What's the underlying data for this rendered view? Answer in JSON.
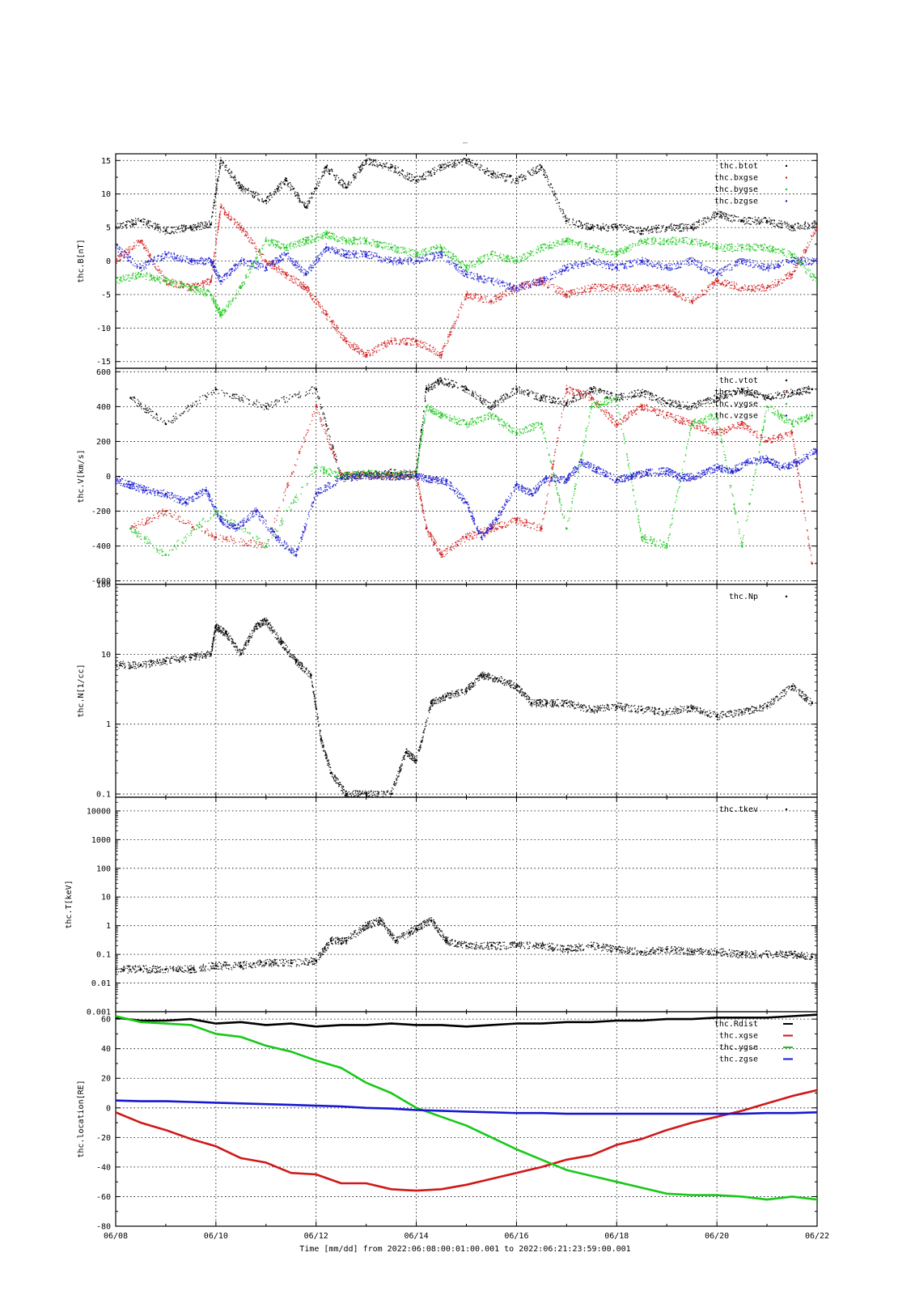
{
  "title": "_",
  "x_title": "Time [mm/dd]  from 2022:06:08:00:01:00.001  to  2022:06:21:23:59:00.001",
  "x_ticks": [
    "06/08",
    "06/10",
    "06/12",
    "06/14",
    "06/16",
    "06/18",
    "06/20",
    "06/22"
  ],
  "colors": {
    "black": "#000000",
    "red": "#d01818",
    "green": "#18c818",
    "blue": "#1818d0",
    "grid": "#000000"
  },
  "chart_data": [
    {
      "type": "scatter",
      "ylabel": "thc.B[nT]",
      "scale": "linear",
      "ylim": [
        -16,
        16
      ],
      "yticks": [
        -15,
        -10,
        -5,
        0,
        5,
        10,
        15
      ],
      "ytick_labels": [
        "-15",
        "-10",
        "-5",
        "0",
        "5",
        "10",
        "15"
      ],
      "series": [
        {
          "name": "thc.btot",
          "color": "black",
          "style": "points",
          "x": [
            0,
            0.5,
            1,
            1.5,
            1.9,
            2.1,
            2.5,
            3,
            3.4,
            3.8,
            4.2,
            4.6,
            5,
            5.5,
            6,
            6.5,
            7,
            7.5,
            8,
            8.5,
            9,
            9.5,
            10,
            10.5,
            11,
            11.5,
            12,
            12.5,
            13,
            13.5,
            14
          ],
          "y": [
            5,
            6,
            4.5,
            5,
            5.5,
            15,
            11,
            9,
            12,
            8,
            14,
            11,
            15,
            14,
            12,
            14,
            15,
            13,
            12,
            14,
            6,
            5,
            5,
            4.5,
            5,
            5,
            7,
            6,
            6,
            5,
            5.5
          ]
        },
        {
          "name": "thc.bxgse",
          "color": "red",
          "style": "points",
          "x": [
            0,
            0.5,
            1,
            1.5,
            1.9,
            2.1,
            2.5,
            3,
            3.4,
            3.8,
            4.2,
            4.6,
            5,
            5.5,
            6,
            6.5,
            7,
            7.5,
            8,
            8.5,
            9,
            9.5,
            10,
            10.5,
            11,
            11.5,
            12,
            12.5,
            13,
            13.5,
            14
          ],
          "y": [
            0,
            3,
            -3,
            -4,
            -3,
            8,
            5,
            0,
            -2,
            -4,
            -8,
            -12,
            -14,
            -12,
            -12,
            -14,
            -5,
            -6,
            -4,
            -3,
            -5,
            -4,
            -4,
            -4,
            -4,
            -6,
            -3,
            -4,
            -4,
            -2,
            5
          ]
        },
        {
          "name": "thc.bygse",
          "color": "green",
          "style": "points",
          "x": [
            0,
            0.5,
            1,
            1.5,
            1.9,
            2.1,
            2.5,
            3,
            3.4,
            3.8,
            4.2,
            4.6,
            5,
            5.5,
            6,
            6.5,
            7,
            7.5,
            8,
            8.5,
            9,
            9.5,
            10,
            10.5,
            11,
            11.5,
            12,
            12.5,
            13,
            13.5,
            14
          ],
          "y": [
            -3,
            -2,
            -3,
            -4,
            -5,
            -8,
            -4,
            3,
            2,
            3,
            4,
            3,
            3,
            2,
            1,
            2,
            -1,
            1,
            0,
            2,
            3,
            2,
            1,
            3,
            3,
            3,
            2,
            2,
            2,
            1,
            -3
          ]
        },
        {
          "name": "thc.bzgse",
          "color": "blue",
          "style": "points",
          "x": [
            0,
            0.5,
            1,
            1.5,
            1.9,
            2.1,
            2.5,
            3,
            3.4,
            3.8,
            4.2,
            4.6,
            5,
            5.5,
            6,
            6.5,
            7,
            7.5,
            8,
            8.5,
            9,
            9.5,
            10,
            10.5,
            11,
            11.5,
            12,
            12.5,
            13,
            13.5,
            14
          ],
          "y": [
            2,
            -1,
            1,
            0,
            0,
            -3,
            0,
            -1,
            1,
            -2,
            2,
            1,
            1,
            0,
            0,
            1,
            -2,
            -3,
            -4,
            -3,
            -1,
            0,
            -1,
            0,
            -1,
            0,
            -2,
            0,
            -1,
            0,
            0
          ]
        }
      ]
    },
    {
      "type": "scatter",
      "ylabel": "thc.V[km/s]",
      "scale": "linear",
      "ylim": [
        -620,
        620
      ],
      "yticks": [
        -600,
        -400,
        -200,
        0,
        200,
        400,
        600
      ],
      "ytick_labels": [
        "-600",
        "-400",
        "-200",
        "0",
        "200",
        "400",
        "600"
      ],
      "series": [
        {
          "name": "thc.vtot",
          "color": "black",
          "style": "points",
          "x": [
            0.3,
            1,
            2,
            3,
            4,
            4.5,
            5,
            5.5,
            6,
            6.2,
            6.5,
            7,
            7.5,
            8,
            8.5,
            9,
            9.5,
            10,
            10.5,
            11,
            11.5,
            12,
            12.5,
            13,
            13.5,
            13.9
          ],
          "y": [
            450,
            300,
            500,
            400,
            500,
            0,
            10,
            20,
            10,
            500,
            550,
            500,
            400,
            500,
            450,
            420,
            500,
            450,
            480,
            420,
            400,
            450,
            500,
            450,
            480,
            500
          ]
        },
        {
          "name": "thc.vxgse",
          "color": "red",
          "style": "points",
          "x": [
            0.3,
            1,
            2,
            3,
            4,
            4.5,
            5,
            5.5,
            6,
            6.2,
            6.5,
            7,
            7.5,
            8,
            8.5,
            9,
            9.5,
            10,
            10.5,
            11,
            11.5,
            12,
            12.5,
            13,
            13.5,
            13.9
          ],
          "y": [
            -300,
            -200,
            -350,
            -400,
            400,
            0,
            10,
            0,
            10,
            -300,
            -450,
            -350,
            -300,
            -250,
            -300,
            500,
            450,
            300,
            400,
            350,
            300,
            250,
            300,
            200,
            250,
            -500
          ]
        },
        {
          "name": "thc.vygse",
          "color": "green",
          "style": "points",
          "x": [
            0.3,
            1,
            2,
            3,
            4,
            4.5,
            5,
            5.5,
            6,
            6.2,
            6.5,
            7,
            7.5,
            8,
            8.5,
            9,
            9.5,
            10,
            10.5,
            11,
            11.5,
            12,
            12.5,
            13,
            13.5,
            13.9
          ],
          "y": [
            -300,
            -450,
            -200,
            -400,
            50,
            0,
            20,
            0,
            20,
            400,
            350,
            300,
            350,
            250,
            300,
            -300,
            400,
            450,
            -350,
            -400,
            300,
            350,
            -400,
            400,
            300,
            350
          ]
        },
        {
          "name": "thc.vzgse",
          "color": "blue",
          "style": "points",
          "x": [
            0,
            0.3,
            0.6,
            1,
            1.4,
            1.8,
            2.1,
            2.4,
            2.8,
            3.2,
            3.6,
            4,
            4.5,
            5,
            5.5,
            6,
            6.3,
            6.6,
            7,
            7.3,
            7.6,
            8,
            8.3,
            8.6,
            9,
            9.3,
            9.6,
            10,
            10.3,
            10.6,
            11,
            11.3,
            11.6,
            12,
            12.3,
            12.6,
            13,
            13.3,
            13.6,
            14
          ],
          "y": [
            -20,
            -50,
            -80,
            -100,
            -150,
            -80,
            -250,
            -300,
            -200,
            -350,
            -450,
            -100,
            -10,
            0,
            0,
            0,
            -20,
            -30,
            -150,
            -350,
            -250,
            -50,
            -100,
            -10,
            -20,
            80,
            40,
            -20,
            0,
            20,
            30,
            -10,
            0,
            50,
            30,
            80,
            100,
            50,
            80,
            150
          ]
        }
      ]
    },
    {
      "type": "scatter",
      "ylabel": "thc.N[1/cc]",
      "scale": "log",
      "ylim": [
        0.09,
        100
      ],
      "yticks": [
        0.1,
        1,
        10,
        100
      ],
      "ytick_labels": [
        "0.1",
        "1",
        "10",
        "100"
      ],
      "series": [
        {
          "name": "thc.Np",
          "color": "black",
          "style": "points",
          "x": [
            0,
            0.5,
            1,
            1.5,
            1.9,
            2,
            2.2,
            2.5,
            2.8,
            3,
            3.3,
            3.6,
            3.9,
            4.1,
            4.3,
            4.6,
            5,
            5.5,
            5.8,
            6,
            6.3,
            6.6,
            7,
            7.3,
            7.6,
            8,
            8.3,
            8.6,
            9,
            9.5,
            10,
            10.5,
            11,
            11.5,
            12,
            12.5,
            13,
            13.5,
            13.9
          ],
          "y": [
            7,
            7,
            8,
            9,
            10,
            25,
            20,
            10,
            25,
            30,
            15,
            8,
            5,
            0.6,
            0.2,
            0.1,
            0.1,
            0.1,
            0.4,
            0.3,
            2,
            2.5,
            3,
            5,
            4.5,
            3.5,
            2,
            2,
            2,
            1.6,
            1.8,
            1.6,
            1.5,
            1.7,
            1.3,
            1.5,
            1.8,
            3.5,
            2
          ]
        }
      ]
    },
    {
      "type": "scatter",
      "ylabel": "thc.T[keV]",
      "scale": "log",
      "ylim": [
        0.001,
        30000
      ],
      "yticks": [
        0.001,
        0.01,
        0.1,
        1,
        10,
        100,
        1000,
        10000
      ],
      "ytick_labels": [
        "0.001",
        "0.01",
        "0.1",
        "1",
        "10",
        "100",
        "1000",
        "10000"
      ],
      "series": [
        {
          "name": "thc.tkev",
          "color": "black",
          "style": "points",
          "x": [
            0,
            0.5,
            1,
            1.5,
            2,
            2.5,
            3,
            3.5,
            4,
            4.3,
            4.6,
            5,
            5.3,
            5.6,
            6,
            6.3,
            6.6,
            7,
            7.5,
            8,
            8.5,
            9,
            9.5,
            10,
            10.5,
            11,
            11.5,
            12,
            12.5,
            13,
            13.5,
            13.9
          ],
          "y": [
            0.03,
            0.03,
            0.03,
            0.03,
            0.04,
            0.04,
            0.05,
            0.05,
            0.06,
            0.3,
            0.3,
            1,
            1.5,
            0.3,
            0.8,
            1.5,
            0.3,
            0.2,
            0.2,
            0.2,
            0.2,
            0.15,
            0.2,
            0.15,
            0.12,
            0.15,
            0.12,
            0.12,
            0.1,
            0.1,
            0.1,
            0.08
          ]
        }
      ]
    },
    {
      "type": "line",
      "ylabel": "thc.location[RE]",
      "scale": "linear",
      "ylim": [
        -80,
        65
      ],
      "yticks": [
        -80,
        -60,
        -40,
        -20,
        0,
        20,
        40,
        60
      ],
      "ytick_labels": [
        "-80",
        "-60",
        "-40",
        "-20",
        "0",
        "20",
        "40",
        "60"
      ],
      "series": [
        {
          "name": "thc.Rdist",
          "color": "black",
          "style": "line",
          "x": [
            0,
            0.5,
            1,
            1.5,
            2,
            2.5,
            3,
            3.5,
            4,
            4.5,
            5,
            5.5,
            6,
            6.5,
            7,
            7.5,
            8,
            8.5,
            9,
            9.5,
            10,
            10.5,
            11,
            11.5,
            12,
            12.5,
            13,
            13.5,
            14
          ],
          "y": [
            61,
            59,
            59,
            60,
            57,
            58,
            56,
            57,
            55,
            56,
            56,
            57,
            56,
            56,
            55,
            56,
            57,
            57,
            58,
            58,
            59,
            59,
            60,
            60,
            61,
            61,
            61,
            62,
            63
          ]
        },
        {
          "name": "thc.xgse",
          "color": "red",
          "style": "line",
          "x": [
            0,
            0.5,
            1,
            1.5,
            2,
            2.5,
            3,
            3.5,
            4,
            4.5,
            5,
            5.5,
            6,
            6.5,
            7,
            7.5,
            8,
            8.5,
            9,
            9.5,
            10,
            10.5,
            11,
            11.5,
            12,
            12.5,
            13,
            13.5,
            14
          ],
          "y": [
            -3,
            -10,
            -15,
            -21,
            -26,
            -34,
            -37,
            -44,
            -45,
            -51,
            -51,
            -55,
            -56,
            -55,
            -52,
            -48,
            -44,
            -40,
            -35,
            -32,
            -25,
            -21,
            -15,
            -10,
            -6,
            -2,
            3,
            8,
            12
          ]
        },
        {
          "name": "thc.ygse",
          "color": "green",
          "style": "line",
          "x": [
            0,
            0.5,
            1,
            1.5,
            2,
            2.5,
            3,
            3.5,
            4,
            4.5,
            5,
            5.5,
            6,
            6.5,
            7,
            7.5,
            8,
            8.5,
            9,
            9.5,
            10,
            10.5,
            11,
            11.5,
            12,
            12.5,
            13,
            13.5,
            14
          ],
          "y": [
            62,
            58,
            57,
            56,
            50,
            48,
            42,
            38,
            32,
            27,
            17,
            10,
            0,
            -6,
            -12,
            -20,
            -28,
            -35,
            -42,
            -46,
            -50,
            -54,
            -58,
            -59,
            -59,
            -60,
            -62,
            -60,
            -62
          ]
        },
        {
          "name": "thc.zgse",
          "color": "blue",
          "style": "line",
          "x": [
            0,
            0.5,
            1,
            1.5,
            2,
            2.5,
            3,
            3.5,
            4,
            4.5,
            5,
            5.5,
            6,
            6.5,
            7,
            7.5,
            8,
            8.5,
            9,
            9.5,
            10,
            10.5,
            11,
            11.5,
            12,
            12.5,
            13,
            13.5,
            14
          ],
          "y": [
            5,
            4.5,
            4.5,
            4,
            3.5,
            3,
            2.5,
            2,
            1.5,
            1,
            0,
            -0.5,
            -1.5,
            -2,
            -2.5,
            -3,
            -3.5,
            -3.5,
            -4,
            -4,
            -4,
            -4,
            -4,
            -4,
            -4,
            -4,
            -3.5,
            -3.5,
            -3
          ]
        }
      ]
    }
  ]
}
